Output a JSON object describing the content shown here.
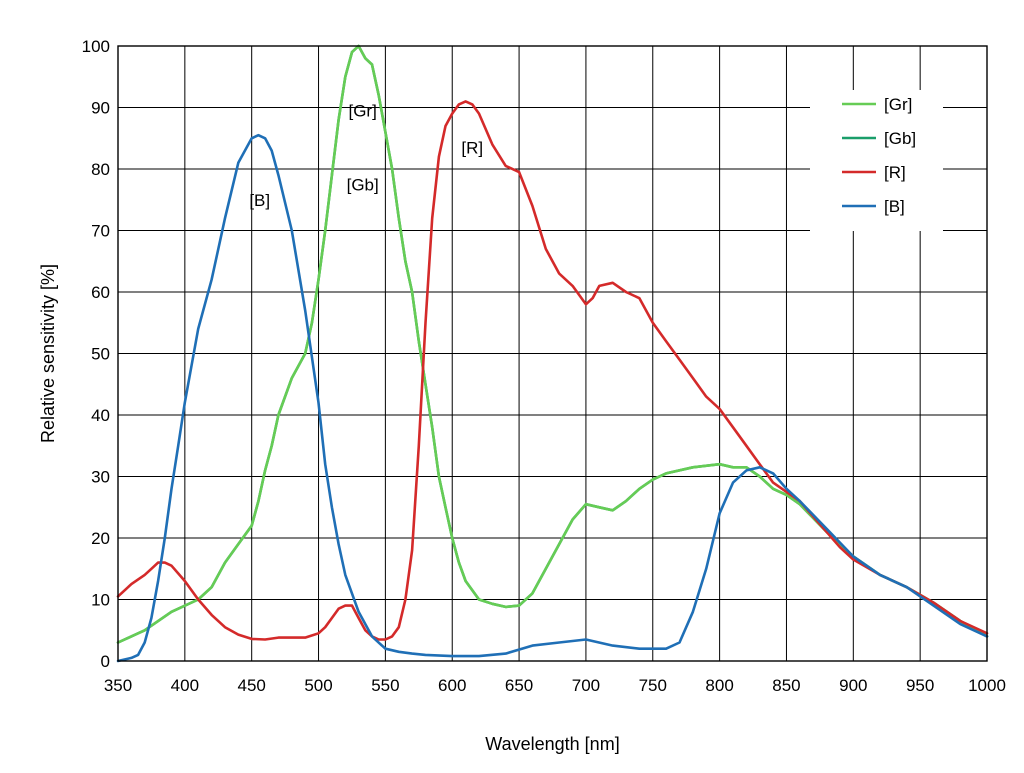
{
  "chart_data": {
    "type": "line",
    "title": "",
    "xlabel": "Wavelength [nm]",
    "ylabel": "Relative sensitivity [%]",
    "xlim": [
      350,
      1000
    ],
    "ylim": [
      0,
      100
    ],
    "xticks": [
      350,
      400,
      450,
      500,
      550,
      600,
      650,
      700,
      750,
      800,
      850,
      900,
      950,
      1000
    ],
    "yticks": [
      0,
      10,
      20,
      30,
      40,
      50,
      60,
      70,
      80,
      90,
      100
    ],
    "grid": true,
    "legend_position": "top-right",
    "series": [
      {
        "name": "[Gr]",
        "color": "#66cc55",
        "x": [
          350,
          370,
          390,
          410,
          420,
          430,
          440,
          450,
          455,
          460,
          465,
          470,
          480,
          490,
          495,
          500,
          505,
          510,
          515,
          520,
          525,
          530,
          535,
          540,
          545,
          550,
          555,
          560,
          565,
          570,
          575,
          580,
          585,
          590,
          595,
          600,
          605,
          610,
          620,
          630,
          640,
          650,
          660,
          670,
          680,
          690,
          700,
          710,
          720,
          730,
          740,
          750,
          760,
          780,
          800,
          810,
          820,
          830,
          840,
          850,
          860,
          880,
          900,
          920,
          940,
          960,
          980,
          1000
        ],
        "values": [
          3,
          5,
          8,
          10,
          12,
          16,
          19,
          22,
          26,
          31,
          35,
          40,
          46,
          50,
          55,
          62,
          70,
          79,
          88,
          95,
          99,
          100,
          98,
          97,
          92,
          86,
          80,
          72,
          65,
          60,
          52,
          45,
          38,
          30,
          25,
          20,
          16,
          13,
          10,
          9.3,
          8.8,
          9,
          11,
          15,
          19,
          23,
          25.5,
          25,
          24.5,
          26,
          28,
          29.5,
          30.5,
          31.5,
          32,
          31.5,
          31.5,
          30,
          28,
          27,
          25.5,
          21,
          17,
          14,
          12,
          9.5,
          6.5,
          4
        ]
      },
      {
        "name": "[Gb]",
        "color": "#1a9e6a",
        "x": [
          350,
          370,
          390,
          410,
          420,
          430,
          440,
          450,
          455,
          460,
          465,
          470,
          480,
          490,
          495,
          500,
          505,
          510,
          515,
          520,
          525,
          530,
          535,
          540,
          545,
          550,
          555,
          560,
          565,
          570,
          575,
          580,
          585,
          590,
          595,
          600,
          605,
          610,
          620,
          630,
          640,
          650,
          660,
          670,
          680,
          690,
          700,
          710,
          720,
          730,
          740,
          750,
          760,
          780,
          800,
          810,
          820,
          830,
          840,
          850,
          860,
          880,
          900,
          920,
          940,
          960,
          980,
          1000
        ],
        "values": [
          3,
          5,
          8,
          10,
          12,
          16,
          19,
          22,
          26,
          31,
          35,
          40,
          46,
          50,
          55,
          62,
          70,
          79,
          88,
          95,
          99,
          100,
          98,
          97,
          92,
          86,
          80,
          72,
          65,
          60,
          52,
          45,
          38,
          30,
          25,
          20,
          16,
          13,
          10,
          9.3,
          8.8,
          9,
          11,
          15,
          19,
          23,
          25.5,
          25,
          24.5,
          26,
          28,
          29.5,
          30.5,
          31.5,
          32,
          31.5,
          31.5,
          30,
          28,
          27,
          25.5,
          21,
          17,
          14,
          12,
          9.5,
          6.5,
          4
        ]
      },
      {
        "name": "[R]",
        "color": "#d42a2a",
        "x": [
          350,
          360,
          370,
          375,
          380,
          385,
          390,
          400,
          410,
          420,
          430,
          440,
          450,
          460,
          470,
          480,
          490,
          500,
          505,
          510,
          515,
          520,
          525,
          530,
          535,
          540,
          545,
          550,
          555,
          560,
          565,
          570,
          575,
          580,
          585,
          590,
          595,
          600,
          605,
          610,
          615,
          620,
          630,
          640,
          650,
          660,
          670,
          680,
          690,
          700,
          705,
          710,
          720,
          730,
          740,
          750,
          760,
          770,
          780,
          790,
          800,
          810,
          820,
          830,
          840,
          850,
          860,
          870,
          880,
          890,
          900,
          920,
          940,
          960,
          980,
          1000
        ],
        "values": [
          10.5,
          12.5,
          14,
          15,
          16,
          16,
          15.5,
          13,
          10,
          7.5,
          5.5,
          4.3,
          3.6,
          3.5,
          3.8,
          3.8,
          3.8,
          4.5,
          5.5,
          7,
          8.5,
          9,
          9,
          7,
          5,
          4,
          3.5,
          3.5,
          4,
          5.5,
          10,
          18,
          35,
          55,
          72,
          82,
          87,
          89,
          90.5,
          91,
          90.5,
          89,
          84,
          80.5,
          79.5,
          74,
          67,
          63,
          61,
          58,
          59,
          61,
          61.5,
          60,
          59,
          55,
          52,
          49,
          46,
          43,
          41,
          38,
          35,
          32,
          29,
          27.5,
          26,
          23.5,
          21,
          18.5,
          16.5,
          14,
          12,
          9.5,
          6.5,
          4.5
        ]
      },
      {
        "name": "[B]",
        "color": "#1f6fb6",
        "x": [
          350,
          360,
          365,
          370,
          375,
          380,
          385,
          390,
          395,
          400,
          405,
          410,
          420,
          430,
          440,
          450,
          455,
          460,
          465,
          470,
          480,
          490,
          500,
          505,
          510,
          515,
          520,
          530,
          540,
          550,
          560,
          570,
          580,
          600,
          620,
          640,
          660,
          680,
          700,
          720,
          740,
          760,
          770,
          780,
          790,
          800,
          810,
          820,
          830,
          840,
          850,
          860,
          880,
          900,
          920,
          940,
          960,
          980,
          1000
        ],
        "values": [
          0,
          0.5,
          1,
          3,
          7,
          13,
          20,
          28,
          35,
          42,
          48,
          54,
          62,
          72,
          81,
          85,
          85.5,
          85,
          83,
          79,
          70,
          57,
          42,
          32,
          25,
          19,
          14,
          8,
          4,
          2,
          1.5,
          1.2,
          1,
          0.8,
          0.8,
          1.2,
          2.5,
          3,
          3.5,
          2.5,
          2,
          2,
          3,
          8,
          15,
          24,
          29,
          31,
          31.5,
          30.5,
          28,
          26,
          21.5,
          17,
          14,
          12,
          9,
          6,
          4
        ]
      }
    ],
    "annotations": [
      {
        "text": "[B]",
        "x": 456,
        "y": 74
      },
      {
        "text": "[Gr]",
        "x": 533,
        "y": 88.5
      },
      {
        "text": "[Gb]",
        "x": 533,
        "y": 76.5
      },
      {
        "text": "[R]",
        "x": 615,
        "y": 82.5
      }
    ]
  }
}
